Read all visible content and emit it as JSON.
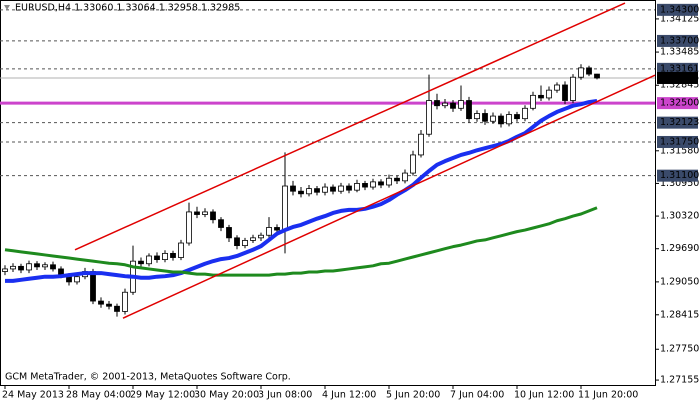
{
  "chart_data": {
    "type": "candlestick",
    "title": "EURUSD,H4  1.33060 1.33064 1.32958 1.32985",
    "footer": "GCM MetaTrader, © 2001-2013, MetaQuotes Software Corp.",
    "categories": [
      "24 May 2013",
      null,
      null,
      null,
      null,
      null,
      null,
      null,
      "28 May 04:00",
      null,
      null,
      null,
      null,
      null,
      null,
      null,
      "29 May 12:00",
      null,
      null,
      null,
      null,
      null,
      null,
      null,
      "30 May 20:00",
      null,
      null,
      null,
      null,
      null,
      null,
      null,
      "3 Jun 08:00",
      null,
      null,
      null,
      null,
      null,
      null,
      null,
      "4 Jun 12:00",
      null,
      null,
      null,
      null,
      null,
      null,
      null,
      "5 Jun 20:00",
      null,
      null,
      null,
      null,
      null,
      null,
      null,
      "7 Jun 04:00",
      null,
      null,
      null,
      null,
      null,
      null,
      null,
      "10 Jun 12:00",
      null,
      null,
      null,
      null,
      null,
      null,
      null,
      "11 Jun 20:00",
      null,
      null
    ],
    "open": [
      1.2925,
      1.293,
      1.2935,
      1.2928,
      1.294,
      1.2934,
      1.2938,
      1.293,
      1.2918,
      1.2905,
      1.2915,
      1.2925,
      1.2868,
      1.2862,
      1.2858,
      1.2848,
      1.2885,
      1.2945,
      1.294,
      1.2955,
      1.2948,
      1.296,
      1.2952,
      1.298,
      1.304,
      1.3035,
      1.304,
      1.3025,
      1.301,
      1.299,
      1.2975,
      1.2985,
      1.299,
      1.2995,
      1.301,
      1.3005,
      1.309,
      1.308,
      1.3075,
      1.3085,
      1.3078,
      1.3088,
      1.308,
      1.309,
      1.3082,
      1.3095,
      1.3088,
      1.3098,
      1.3092,
      1.3105,
      1.31,
      1.3115,
      1.315,
      1.319,
      1.3255,
      1.3245,
      1.325,
      1.324,
      1.3255,
      1.322,
      1.323,
      1.3215,
      1.3225,
      1.321,
      1.3228,
      1.322,
      1.324,
      1.3265,
      1.326,
      1.3275,
      1.3285,
      1.3255,
      1.33,
      1.3318,
      1.3306
    ],
    "high": [
      1.2937,
      1.2941,
      1.294,
      1.2946,
      1.2945,
      1.2943,
      1.2944,
      1.2935,
      1.2922,
      1.292,
      1.2932,
      1.293,
      1.2875,
      1.2868,
      1.2863,
      1.2892,
      1.2975,
      1.2952,
      1.296,
      1.2962,
      1.2966,
      1.2965,
      1.2986,
      1.3058,
      1.305,
      1.3047,
      1.3045,
      1.303,
      1.3015,
      1.2995,
      1.299,
      1.2996,
      1.3,
      1.303,
      1.3016,
      1.3155,
      1.31,
      1.3088,
      1.3092,
      1.309,
      1.3095,
      1.3093,
      1.3096,
      1.3095,
      1.3102,
      1.31,
      1.3104,
      1.3103,
      1.3112,
      1.311,
      1.3122,
      1.3158,
      1.3198,
      1.3305,
      1.3268,
      1.3258,
      1.3256,
      1.3284,
      1.3262,
      1.3236,
      1.3238,
      1.3232,
      1.323,
      1.3234,
      1.3233,
      1.3246,
      1.3272,
      1.3284,
      1.3282,
      1.329,
      1.3292,
      1.3306,
      1.3325,
      1.3322,
      1.33064
    ],
    "low": [
      1.2918,
      1.2924,
      1.2922,
      1.2922,
      1.2928,
      1.2928,
      1.2925,
      1.2912,
      1.2898,
      1.29,
      1.291,
      1.2862,
      1.2855,
      1.2852,
      1.2838,
      1.2842,
      1.288,
      1.2934,
      1.2935,
      1.2942,
      1.2943,
      1.2946,
      1.2947,
      1.2975,
      1.3028,
      1.303,
      1.3018,
      1.3003,
      1.2982,
      1.2968,
      1.297,
      1.298,
      1.2984,
      1.299,
      1.2998,
      1.296,
      1.3072,
      1.3068,
      1.307,
      1.3072,
      1.3072,
      1.3074,
      1.3075,
      1.3076,
      1.3078,
      1.3082,
      1.3083,
      1.3086,
      1.3087,
      1.3094,
      1.3095,
      1.311,
      1.3145,
      1.3185,
      1.3238,
      1.324,
      1.3233,
      1.3235,
      1.3212,
      1.3214,
      1.3208,
      1.321,
      1.3203,
      1.3205,
      1.3214,
      1.3215,
      1.3236,
      1.3254,
      1.3255,
      1.327,
      1.3248,
      1.325,
      1.3295,
      1.3302,
      1.32958
    ],
    "close": [
      1.293,
      1.2935,
      1.2928,
      1.294,
      1.2934,
      1.2938,
      1.293,
      1.2918,
      1.2905,
      1.2915,
      1.2925,
      1.2868,
      1.2862,
      1.2858,
      1.2848,
      1.2885,
      1.2945,
      1.294,
      1.2955,
      1.2948,
      1.296,
      1.2952,
      1.298,
      1.304,
      1.3035,
      1.304,
      1.3025,
      1.301,
      1.299,
      1.2975,
      1.2985,
      1.299,
      1.2995,
      1.301,
      1.3005,
      1.309,
      1.308,
      1.3075,
      1.3085,
      1.3078,
      1.3088,
      1.308,
      1.309,
      1.3082,
      1.3095,
      1.3088,
      1.3098,
      1.3092,
      1.3105,
      1.31,
      1.3115,
      1.315,
      1.319,
      1.3255,
      1.3245,
      1.325,
      1.324,
      1.3255,
      1.322,
      1.323,
      1.3215,
      1.3225,
      1.321,
      1.3228,
      1.322,
      1.324,
      1.3265,
      1.326,
      1.3275,
      1.3285,
      1.3255,
      1.33,
      1.3318,
      1.3306,
      1.32985
    ],
    "moving_averages": [
      {
        "color": "#1a2ff0",
        "values": [
          1.2907,
          1.2907,
          1.2909,
          1.2911,
          1.2913,
          1.2915,
          1.2915,
          1.2916,
          1.2918,
          1.292,
          1.2922,
          1.2922,
          1.2922,
          1.292,
          1.2918,
          1.2916,
          1.2915,
          1.2913,
          1.2913,
          1.2915,
          1.2916,
          1.2918,
          1.2922,
          1.2928,
          1.2934,
          1.294,
          1.2945,
          1.2949,
          1.2951,
          1.2955,
          1.2961,
          1.2967,
          1.2974,
          1.2986,
          1.2998,
          1.3005,
          1.3011,
          1.3015,
          1.3021,
          1.3027,
          1.3032,
          1.3038,
          1.3042,
          1.3044,
          1.3044,
          1.3046,
          1.305,
          1.3055,
          1.3063,
          1.3073,
          1.3082,
          1.3092,
          1.3106,
          1.3119,
          1.3131,
          1.3138,
          1.3144,
          1.315,
          1.3154,
          1.3159,
          1.3163,
          1.3167,
          1.3171,
          1.3177,
          1.3185,
          1.3192,
          1.3204,
          1.3216,
          1.3225,
          1.3233,
          1.3239,
          1.3245,
          1.3248,
          1.3252,
          1.3254
        ]
      },
      {
        "color": "#1e8a1e",
        "values": [
          1.2967,
          1.2965,
          1.2963,
          1.2961,
          1.2959,
          1.2957,
          1.2955,
          1.2953,
          1.2951,
          1.2949,
          1.2947,
          1.2945,
          1.2943,
          1.2941,
          1.294,
          1.2938,
          1.2934,
          1.2932,
          1.293,
          1.2928,
          1.2926,
          1.2924,
          1.2924,
          1.2922,
          1.292,
          1.292,
          1.2918,
          1.2918,
          1.2918,
          1.2918,
          1.2918,
          1.2918,
          1.2918,
          1.2918,
          1.292,
          1.292,
          1.2922,
          1.2922,
          1.2924,
          1.2924,
          1.2926,
          1.2926,
          1.2928,
          1.293,
          1.2932,
          1.2934,
          1.2936,
          1.294,
          1.2941,
          1.2945,
          1.2949,
          1.2953,
          1.2957,
          1.2961,
          1.2965,
          1.2969,
          1.2973,
          1.2976,
          1.298,
          1.2984,
          1.2986,
          1.299,
          1.2994,
          1.2998,
          1.3002,
          1.3005,
          1.3009,
          1.3013,
          1.3017,
          1.3023,
          1.3027,
          1.3032,
          1.3036,
          1.3042,
          1.3048
        ]
      }
    ],
    "trendlines": [
      {
        "color": "#e00000",
        "x": [
          8.75,
          77.5
        ],
        "values": [
          1.2967,
          1.3443
        ]
      },
      {
        "color": "#e00000",
        "x": [
          14.75,
          81.25
        ],
        "values": [
          1.2835,
          1.3304
        ]
      }
    ],
    "levels": [
      {
        "value": 1.343,
        "label": "1.34300",
        "color": "#3a4a6a",
        "style": "dashed"
      },
      {
        "value": 1.337,
        "label": "1.33700",
        "color": "#3a4a6a",
        "style": "dashed"
      },
      {
        "value": 1.33161,
        "label": "1.33161",
        "color": "#3a4a6a",
        "style": "dashed"
      },
      {
        "value": 1.32985,
        "label": "1.32985",
        "color": "#000000",
        "style": "price"
      },
      {
        "value": 1.325,
        "label": "1.32500",
        "color": "#cc44cc",
        "style": "solid"
      },
      {
        "value": 1.32123,
        "label": "1.32123",
        "color": "#3a4a6a",
        "style": "dashed"
      },
      {
        "value": 1.3175,
        "label": "1.31750",
        "color": "#3a4a6a",
        "style": "dashed"
      },
      {
        "value": 1.311,
        "label": "1.31100",
        "color": "#3a4a6a",
        "style": "dashed"
      }
    ],
    "ylim": [
      1.2706,
      1.3449
    ],
    "yticks": [
      1.34125,
      1.33485,
      1.32845,
      {
        "value": 1.3158,
        "label": "1.31580"
      },
      {
        "value": 1.3095,
        "label": "1.30950"
      },
      {
        "value": 1.3032,
        "label": "1.30320"
      },
      {
        "value": 1.2969,
        "label": "1.29690"
      },
      {
        "value": 1.2905,
        "label": "1.29050"
      },
      1.28415,
      {
        "value": 1.2775,
        "label": "1.27750"
      },
      1.27155
    ],
    "grid": false
  }
}
